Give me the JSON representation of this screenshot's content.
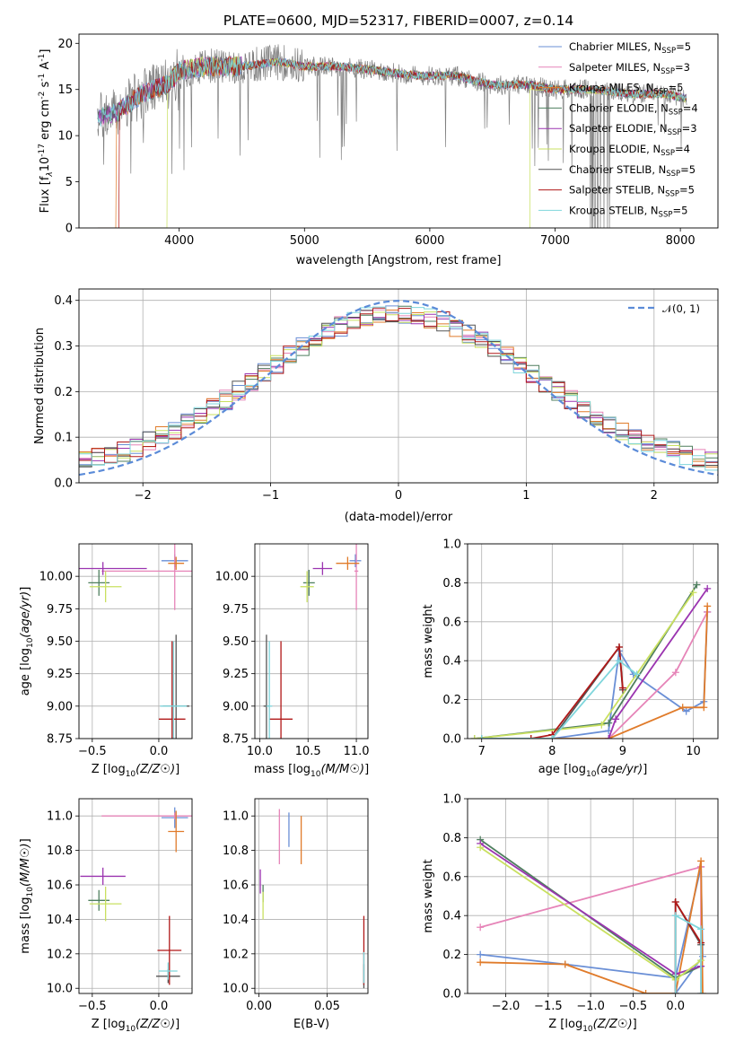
{
  "chart_data": [
    {
      "id": "spectrum",
      "type": "line",
      "title": "PLATE=0600, MJD=52317, FIBERID=0007, z=0.14",
      "xlabel": "wavelength [Angstrom, rest frame]",
      "ylabel": "Flux [f",
      "ylabel_parts": [
        "Flux [f",
        "λ",
        "10",
        "-17",
        " erg cm",
        "-2",
        " s",
        "-1",
        " A",
        "-1",
        "]"
      ],
      "xlim": [
        3200,
        8300
      ],
      "ylim": [
        0,
        21
      ],
      "xticks": [
        4000,
        5000,
        6000,
        7000,
        8000
      ],
      "yticks": [
        0,
        5,
        10,
        15,
        20
      ],
      "grid": false,
      "legend_position": "top-right",
      "series": [
        {
          "name": "Chabrier MILES, N",
          "sub": "SSP",
          "suffix": "=5",
          "color": "#6a8fd6"
        },
        {
          "name": "Salpeter MILES, N",
          "sub": "SSP",
          "suffix": "=3",
          "color": "#e684b8"
        },
        {
          "name": "Kroupa MILES, N",
          "sub": "SSP",
          "suffix": "=5",
          "color": "#e07b2a"
        },
        {
          "name": "Chabrier ELODIE, N",
          "sub": "SSP",
          "suffix": "=4",
          "color": "#4f7f5f"
        },
        {
          "name": "Salpeter ELODIE, N",
          "sub": "SSP",
          "suffix": "=3",
          "color": "#9b34b0"
        },
        {
          "name": "Kroupa ELODIE, N",
          "sub": "SSP",
          "suffix": "=4",
          "color": "#c9e060"
        },
        {
          "name": "Chabrier STELIB, N",
          "sub": "SSP",
          "suffix": "=5",
          "color": "#555555"
        },
        {
          "name": "Salpeter STELIB, N",
          "sub": "SSP",
          "suffix": "=5",
          "color": "#b01818"
        },
        {
          "name": "Kroupa STELIB, N",
          "sub": "SSP",
          "suffix": "=5",
          "color": "#7fd6dc"
        }
      ],
      "data_color": "#808080",
      "profile": {
        "x": [
          3350,
          3500,
          3700,
          3900,
          4000,
          4200,
          4500,
          4800,
          5000,
          5300,
          5600,
          5900,
          6200,
          6500,
          6800,
          7000,
          7300,
          7600,
          7900,
          8050
        ],
        "y": [
          12.0,
          12.5,
          14.5,
          15.5,
          17.0,
          17.5,
          17.5,
          18.0,
          17.5,
          17.5,
          17.0,
          16.5,
          16.5,
          15.5,
          15.5,
          15.0,
          15.0,
          14.5,
          14.5,
          14.0
        ]
      },
      "model_cutoffs": [
        {
          "series": 2,
          "start": 3500
        },
        {
          "series": 5,
          "start": 3905
        },
        {
          "series": 7,
          "start": 3520
        }
      ]
    },
    {
      "id": "residuals",
      "type": "step",
      "xlabel": "(data-model)/error",
      "ylabel": "Normed distribution",
      "xlim": [
        -2.5,
        2.5
      ],
      "ylim": [
        0,
        0.425
      ],
      "xticks": [
        -2,
        -1,
        0,
        1,
        2
      ],
      "yticks": [
        0.0,
        0.1,
        0.2,
        0.3,
        0.4
      ],
      "grid": true,
      "legend_position": "top-right",
      "reference": {
        "name": "𝒩(0, 1)",
        "mean": 0,
        "sigma": 1,
        "color": "#5b8bd8",
        "style": "dashed"
      },
      "bins": {
        "start": -2.5,
        "width": 0.1,
        "count": 50
      }
    },
    {
      "id": "age-vs-z",
      "type": "errorbar",
      "xlabel": "Z [log10(Z/Z☉)]",
      "ylabel": "age  [log10(age/yr)]",
      "xlim": [
        -0.6,
        0.25
      ],
      "ylim": [
        8.75,
        10.25
      ],
      "xticks": [
        -0.5,
        0.0
      ],
      "yticks": [
        8.75,
        9.0,
        9.25,
        9.5,
        9.75,
        10.0
      ],
      "grid": true,
      "points": [
        {
          "series": 0,
          "x": 0.12,
          "y": 10.12,
          "xerr": 0.1,
          "yerr": 0.05
        },
        {
          "series": 1,
          "x": 0.12,
          "y": 10.04,
          "xerr": 0.55,
          "yerr": 0.3
        },
        {
          "series": 2,
          "x": 0.13,
          "y": 10.1,
          "xerr": 0.06,
          "yerr": 0.05
        },
        {
          "series": 3,
          "x": -0.45,
          "y": 9.95,
          "xerr": 0.08,
          "yerr": 0.1
        },
        {
          "series": 4,
          "x": -0.42,
          "y": 10.06,
          "xerr": 0.33,
          "yerr": 0.05
        },
        {
          "series": 5,
          "x": -0.4,
          "y": 9.92,
          "xerr": 0.12,
          "yerr": 0.12
        },
        {
          "series": 6,
          "x": 0.13,
          "y": 9.0,
          "xerr": 0.1,
          "yerr": 0.55
        },
        {
          "series": 7,
          "x": 0.1,
          "y": 8.9,
          "xerr": 0.1,
          "yerr": 0.6
        },
        {
          "series": 8,
          "x": 0.11,
          "y": 9.0,
          "xerr": 0.1,
          "yerr": 0.5
        }
      ]
    },
    {
      "id": "age-vs-mass",
      "type": "errorbar",
      "xlabel": "mass [log10(M/M☉)]",
      "ylabel": "",
      "xlim": [
        9.95,
        11.12
      ],
      "ylim": [
        8.75,
        10.25
      ],
      "xticks": [
        10.0,
        10.5,
        11.0
      ],
      "yticks": [
        8.75,
        9.0,
        9.25,
        9.5,
        9.75,
        10.0
      ],
      "grid": true,
      "points": [
        {
          "series": 0,
          "x": 10.99,
          "y": 10.12,
          "xerr": 0.06,
          "yerr": 0.05
        },
        {
          "series": 1,
          "x": 11.0,
          "y": 10.04,
          "xerr": 0.02,
          "yerr": 0.3
        },
        {
          "series": 2,
          "x": 10.91,
          "y": 10.1,
          "xerr": 0.12,
          "yerr": 0.05
        },
        {
          "series": 3,
          "x": 10.51,
          "y": 9.95,
          "xerr": 0.06,
          "yerr": 0.1
        },
        {
          "series": 4,
          "x": 10.65,
          "y": 10.06,
          "xerr": 0.1,
          "yerr": 0.05
        },
        {
          "series": 5,
          "x": 10.49,
          "y": 9.92,
          "xerr": 0.07,
          "yerr": 0.12
        },
        {
          "series": 6,
          "x": 10.07,
          "y": 9.0,
          "xerr": 0.03,
          "yerr": 0.55
        },
        {
          "series": 7,
          "x": 10.22,
          "y": 8.9,
          "xerr": 0.12,
          "yerr": 0.6
        },
        {
          "series": 8,
          "x": 10.1,
          "y": 9.0,
          "xerr": 0.03,
          "yerr": 0.5
        }
      ]
    },
    {
      "id": "massweight-vs-age",
      "type": "line",
      "xlabel": "age  [log10(age/yr)]",
      "ylabel": "mass weight",
      "xlim": [
        6.8,
        10.35
      ],
      "ylim": [
        0,
        1.0
      ],
      "xticks": [
        7,
        8,
        9,
        10
      ],
      "yticks": [
        0.0,
        0.2,
        0.4,
        0.6,
        0.8,
        1.0
      ],
      "grid": true,
      "series": [
        {
          "series": 0,
          "x": [
            7.0,
            8.0,
            8.8,
            8.95,
            9.15,
            9.9,
            10.15,
            10.2
          ],
          "y": [
            0.0,
            0.0,
            0.04,
            0.45,
            0.33,
            0.14,
            0.19,
            0.65
          ]
        },
        {
          "series": 1,
          "x": [
            8.8,
            9.75,
            10.2
          ],
          "y": [
            0.0,
            0.34,
            0.65
          ]
        },
        {
          "series": 2,
          "x": [
            7.7,
            8.8,
            9.85,
            10.15,
            10.2
          ],
          "y": [
            0.0,
            0.0,
            0.16,
            0.16,
            0.68
          ]
        },
        {
          "series": 3,
          "x": [
            6.9,
            8.8,
            10.05
          ],
          "y": [
            0.0,
            0.08,
            0.79
          ]
        },
        {
          "series": 4,
          "x": [
            8.8,
            8.9,
            10.2
          ],
          "y": [
            0.0,
            0.1,
            0.77
          ]
        },
        {
          "series": 5,
          "x": [
            6.9,
            8.7,
            10.0
          ],
          "y": [
            0.0,
            0.07,
            0.75
          ]
        },
        {
          "series": 6,
          "x": [
            7.0,
            8.0,
            8.95,
            9.0
          ],
          "y": [
            0.0,
            0.0,
            0.47,
            0.25
          ]
        },
        {
          "series": 7,
          "x": [
            7.7,
            8.0,
            8.95,
            9.0
          ],
          "y": [
            0.0,
            0.02,
            0.47,
            0.26
          ]
        },
        {
          "series": 8,
          "x": [
            7.0,
            8.0,
            8.95,
            9.2
          ],
          "y": [
            0.0,
            0.0,
            0.4,
            0.33
          ]
        }
      ]
    },
    {
      "id": "mass-vs-z",
      "type": "errorbar",
      "xlabel": "Z [log10(Z/Z☉)]",
      "ylabel": "mass [log10(M/M☉)]",
      "xlim": [
        -0.6,
        0.25
      ],
      "ylim": [
        9.97,
        11.1
      ],
      "xticks": [
        -0.5,
        0.0
      ],
      "yticks": [
        10.0,
        10.2,
        10.4,
        10.6,
        10.8,
        11.0
      ],
      "grid": true,
      "points": [
        {
          "series": 0,
          "x": 0.12,
          "y": 10.99,
          "xerr": 0.1,
          "yerr": 0.06
        },
        {
          "series": 1,
          "x": 0.12,
          "y": 11.0,
          "xerr": 0.55,
          "yerr": 0.02
        },
        {
          "series": 2,
          "x": 0.13,
          "y": 10.91,
          "xerr": 0.06,
          "yerr": 0.12
        },
        {
          "series": 3,
          "x": -0.45,
          "y": 10.51,
          "xerr": 0.08,
          "yerr": 0.06
        },
        {
          "series": 4,
          "x": -0.42,
          "y": 10.65,
          "xerr": 0.17,
          "yerr": 0.05
        },
        {
          "series": 5,
          "x": -0.4,
          "y": 10.49,
          "xerr": 0.12,
          "yerr": 0.1
        },
        {
          "series": 6,
          "x": 0.07,
          "y": 10.07,
          "xerr": 0.09,
          "yerr": 0.04
        },
        {
          "series": 7,
          "x": 0.08,
          "y": 10.22,
          "xerr": 0.09,
          "yerr": 0.2
        },
        {
          "series": 8,
          "x": 0.07,
          "y": 10.1,
          "xerr": 0.07,
          "yerr": 0.05
        }
      ]
    },
    {
      "id": "mass-vs-ebv",
      "type": "errorbar",
      "xlabel": "E(B-V)",
      "ylabel": "",
      "xlim": [
        -0.003,
        0.08
      ],
      "ylim": [
        9.97,
        11.1
      ],
      "xticks": [
        0.0,
        0.05
      ],
      "yticks": [
        10.0,
        10.2,
        10.4,
        10.6,
        10.8,
        11.0
      ],
      "grid": true,
      "points": [
        {
          "series": 0,
          "x": 0.022,
          "y": 10.92,
          "xerr": 0,
          "yerr": 0.1
        },
        {
          "series": 1,
          "x": 0.015,
          "y": 10.88,
          "xerr": 0,
          "yerr": 0.16
        },
        {
          "series": 2,
          "x": 0.031,
          "y": 10.86,
          "xerr": 0,
          "yerr": 0.14
        },
        {
          "series": 3,
          "x": 0.003,
          "y": 10.55,
          "xerr": 0,
          "yerr": 0.05
        },
        {
          "series": 4,
          "x": 0.001,
          "y": 10.62,
          "xerr": 0,
          "yerr": 0.07
        },
        {
          "series": 5,
          "x": 0.003,
          "y": 10.48,
          "xerr": 0,
          "yerr": 0.08
        },
        {
          "series": 6,
          "x": 0.077,
          "y": 10.07,
          "xerr": 0,
          "yerr": 0.07
        },
        {
          "series": 7,
          "x": 0.077,
          "y": 10.22,
          "xerr": 0,
          "yerr": 0.2
        },
        {
          "series": 8,
          "x": 0.077,
          "y": 10.12,
          "xerr": 0,
          "yerr": 0.09
        }
      ]
    },
    {
      "id": "massweight-vs-z",
      "type": "line",
      "xlabel": "Z [log10(Z/Z☉)]",
      "ylabel": "mass weight",
      "xlim": [
        -2.45,
        0.5
      ],
      "ylim": [
        0,
        1.0
      ],
      "xticks": [
        -2.0,
        -1.5,
        -1.0,
        -0.5,
        0.0
      ],
      "yticks": [
        0.0,
        0.2,
        0.4,
        0.6,
        0.8,
        1.0
      ],
      "grid": true,
      "series": [
        {
          "series": 0,
          "x": [
            -2.3,
            -1.3,
            0.0,
            0.3,
            0.32,
            0.0
          ],
          "y": [
            0.2,
            0.15,
            0.08,
            0.65,
            0.19,
            0.0
          ]
        },
        {
          "series": 1,
          "x": [
            -2.3,
            0.3,
            0.3
          ],
          "y": [
            0.34,
            0.65,
            0.0
          ]
        },
        {
          "series": 2,
          "x": [
            -2.3,
            -1.3,
            -0.35,
            0.0,
            0.3,
            0.32
          ],
          "y": [
            0.16,
            0.15,
            0.0,
            0.0,
            0.68,
            0.0
          ]
        },
        {
          "series": 3,
          "x": [
            -2.3,
            0.0,
            0.3
          ],
          "y": [
            0.79,
            0.08,
            0.14
          ]
        },
        {
          "series": 4,
          "x": [
            -2.3,
            0.0,
            0.3
          ],
          "y": [
            0.77,
            0.1,
            0.14
          ]
        },
        {
          "series": 5,
          "x": [
            -2.3,
            0.0,
            0.3
          ],
          "y": [
            0.75,
            0.07,
            0.17
          ]
        },
        {
          "series": 6,
          "x": [
            0.0,
            0.0,
            0.3
          ],
          "y": [
            0.0,
            0.47,
            0.25
          ]
        },
        {
          "series": 7,
          "x": [
            0.0,
            0.0,
            0.3
          ],
          "y": [
            0.0,
            0.47,
            0.26
          ]
        },
        {
          "series": 8,
          "x": [
            0.0,
            0.0,
            0.3,
            0.3
          ],
          "y": [
            0.0,
            0.4,
            0.33,
            0.0
          ]
        }
      ]
    }
  ]
}
